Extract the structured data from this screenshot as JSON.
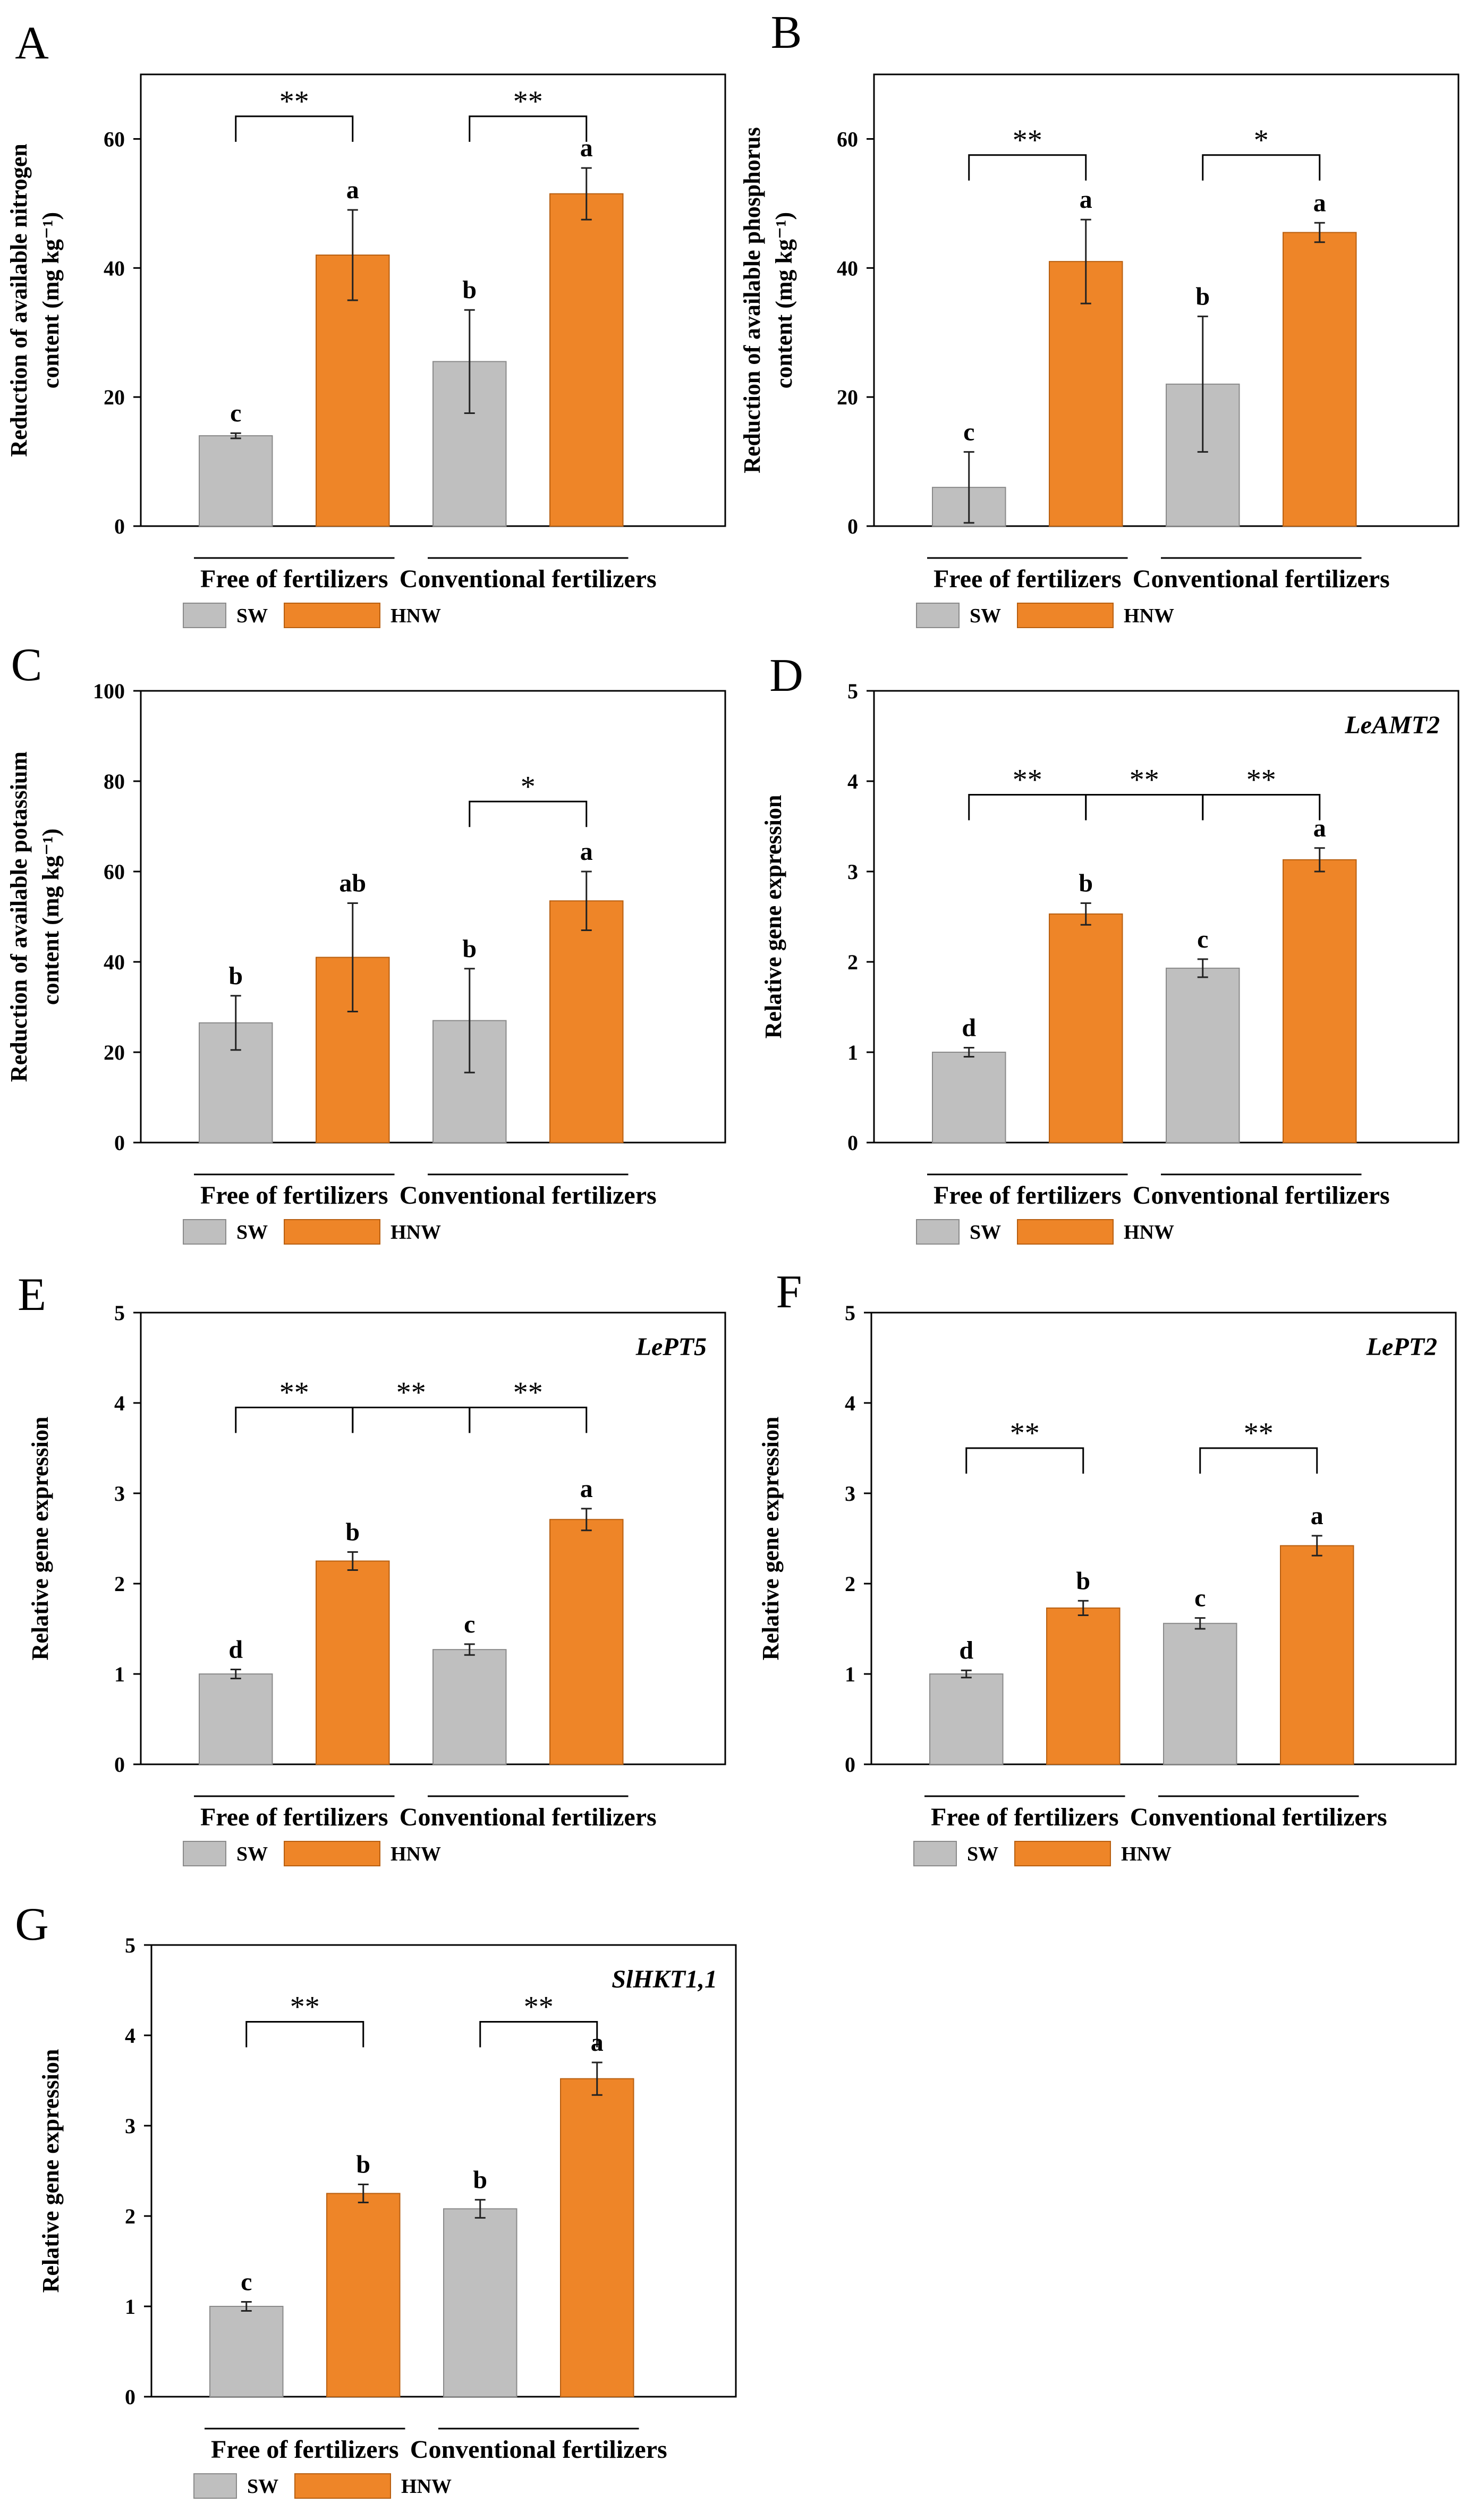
{
  "figure": {
    "legend_labels": [
      "SW",
      "HNW"
    ]
  },
  "colors": {
    "sw": "#bfbfbf",
    "hnw": "#ee8528",
    "sw_edge": "#8a8a8a",
    "hnw_edge": "#b85f10",
    "axis": "#000000"
  },
  "chart_data": [
    {
      "panel": "A",
      "type": "bar",
      "groups": [
        "Free of fertilizers",
        "Conventional fertilizers"
      ],
      "ylabel_lines": [
        "Reduction of available nitrogen",
        "content (mg kg⁻¹)"
      ],
      "ylim": [
        0,
        70
      ],
      "yticks": [
        0,
        20,
        40,
        60
      ],
      "gene": "",
      "bars": [
        {
          "series": "SW",
          "value": 14,
          "error": 0.4,
          "letter": "c"
        },
        {
          "series": "HNW",
          "value": 42,
          "error": 7,
          "letter": "a"
        },
        {
          "series": "SW",
          "value": 25.5,
          "error": 8,
          "letter": "b"
        },
        {
          "series": "HNW",
          "value": 51.5,
          "error": 4,
          "letter": "a"
        }
      ],
      "sig": [
        {
          "from": 0,
          "to": 1,
          "label": "**",
          "y": 63.5
        },
        {
          "from": 2,
          "to": 3,
          "label": "**",
          "y": 63.5
        }
      ]
    },
    {
      "panel": "B",
      "type": "bar",
      "groups": [
        "Free of fertilizers",
        "Conventional fertilizers"
      ],
      "ylabel_lines": [
        "Reduction of available phosphorus",
        "content (mg kg⁻¹)"
      ],
      "ylim": [
        0,
        70
      ],
      "yticks": [
        0,
        20,
        40,
        60
      ],
      "gene": "",
      "bars": [
        {
          "series": "SW",
          "value": 6,
          "error": 5.5,
          "letter": "c"
        },
        {
          "series": "HNW",
          "value": 41,
          "error": 6.5,
          "letter": "a"
        },
        {
          "series": "SW",
          "value": 22,
          "error": 10.5,
          "letter": "b"
        },
        {
          "series": "HNW",
          "value": 45.5,
          "error": 1.5,
          "letter": "a"
        }
      ],
      "sig": [
        {
          "from": 0,
          "to": 1,
          "label": "**",
          "y": 57.5
        },
        {
          "from": 2,
          "to": 3,
          "label": "*",
          "y": 57.5
        }
      ]
    },
    {
      "panel": "C",
      "type": "bar",
      "groups": [
        "Free of fertilizers",
        "Conventional fertilizers"
      ],
      "ylabel_lines": [
        "Reduction of available potassium",
        "content (mg kg⁻¹)"
      ],
      "ylim": [
        0,
        100
      ],
      "yticks": [
        0,
        20,
        40,
        60,
        80,
        100
      ],
      "gene": "",
      "bars": [
        {
          "series": "SW",
          "value": 26.5,
          "error": 6,
          "letter": "b"
        },
        {
          "series": "HNW",
          "value": 41,
          "error": 12,
          "letter": "ab"
        },
        {
          "series": "SW",
          "value": 27,
          "error": 11.5,
          "letter": "b"
        },
        {
          "series": "HNW",
          "value": 53.5,
          "error": 6.5,
          "letter": "a"
        }
      ],
      "sig": [
        {
          "from": 2,
          "to": 3,
          "label": "*",
          "y": 75.5
        }
      ]
    },
    {
      "panel": "D",
      "type": "bar",
      "groups": [
        "Free of fertilizers",
        "Conventional fertilizers"
      ],
      "ylabel_lines": [
        "Relative gene expression"
      ],
      "ylim": [
        0,
        5
      ],
      "yticks": [
        0,
        1,
        2,
        3,
        4,
        5
      ],
      "gene": "LeAMT2",
      "bars": [
        {
          "series": "SW",
          "value": 1.0,
          "error": 0.05,
          "letter": "d"
        },
        {
          "series": "HNW",
          "value": 2.53,
          "error": 0.12,
          "letter": "b"
        },
        {
          "series": "SW",
          "value": 1.93,
          "error": 0.1,
          "letter": "c"
        },
        {
          "series": "HNW",
          "value": 3.13,
          "error": 0.13,
          "letter": "a"
        }
      ],
      "sig": [
        {
          "from": 0,
          "to": 1,
          "label": "**",
          "y": 3.85
        },
        {
          "from": 1,
          "to": 2,
          "label": "**",
          "y": 3.85
        },
        {
          "from": 2,
          "to": 3,
          "label": "**",
          "y": 3.85
        }
      ]
    },
    {
      "panel": "E",
      "type": "bar",
      "groups": [
        "Free of fertilizers",
        "Conventional fertilizers"
      ],
      "ylabel_lines": [
        "Relative gene expression"
      ],
      "ylim": [
        0,
        5
      ],
      "yticks": [
        0,
        1,
        2,
        3,
        4,
        5
      ],
      "gene": "LePT5",
      "bars": [
        {
          "series": "SW",
          "value": 1.0,
          "error": 0.05,
          "letter": "d"
        },
        {
          "series": "HNW",
          "value": 2.25,
          "error": 0.1,
          "letter": "b"
        },
        {
          "series": "SW",
          "value": 1.27,
          "error": 0.06,
          "letter": "c"
        },
        {
          "series": "HNW",
          "value": 2.71,
          "error": 0.12,
          "letter": "a"
        }
      ],
      "sig": [
        {
          "from": 0,
          "to": 1,
          "label": "**",
          "y": 3.95
        },
        {
          "from": 1,
          "to": 2,
          "label": "**",
          "y": 3.95
        },
        {
          "from": 2,
          "to": 3,
          "label": "**",
          "y": 3.95
        }
      ]
    },
    {
      "panel": "F",
      "type": "bar",
      "groups": [
        "Free of fertilizers",
        "Conventional fertilizers"
      ],
      "ylabel_lines": [
        "Relative gene expression"
      ],
      "ylim": [
        0,
        5
      ],
      "yticks": [
        0,
        1,
        2,
        3,
        4,
        5
      ],
      "gene": "LePT2",
      "bars": [
        {
          "series": "SW",
          "value": 1.0,
          "error": 0.04,
          "letter": "d"
        },
        {
          "series": "HNW",
          "value": 1.73,
          "error": 0.08,
          "letter": "b"
        },
        {
          "series": "SW",
          "value": 1.56,
          "error": 0.06,
          "letter": "c"
        },
        {
          "series": "HNW",
          "value": 2.42,
          "error": 0.11,
          "letter": "a"
        }
      ],
      "sig": [
        {
          "from": 0,
          "to": 1,
          "label": "**",
          "y": 3.5
        },
        {
          "from": 2,
          "to": 3,
          "label": "**",
          "y": 3.5
        }
      ]
    },
    {
      "panel": "G",
      "type": "bar",
      "groups": [
        "Free of fertilizers",
        "Conventional fertilizers"
      ],
      "ylabel_lines": [
        "Relative gene expression"
      ],
      "ylim": [
        0,
        5
      ],
      "yticks": [
        0,
        1,
        2,
        3,
        4,
        5
      ],
      "gene": "SlHKT1,1",
      "bars": [
        {
          "series": "SW",
          "value": 1.0,
          "error": 0.05,
          "letter": "c"
        },
        {
          "series": "HNW",
          "value": 2.25,
          "error": 0.1,
          "letter": "b"
        },
        {
          "series": "SW",
          "value": 2.08,
          "error": 0.1,
          "letter": "b"
        },
        {
          "series": "HNW",
          "value": 3.52,
          "error": 0.18,
          "letter": "a"
        }
      ],
      "sig": [
        {
          "from": 0,
          "to": 1,
          "label": "**",
          "y": 4.15
        },
        {
          "from": 2,
          "to": 3,
          "label": "**",
          "y": 4.15
        }
      ]
    }
  ]
}
